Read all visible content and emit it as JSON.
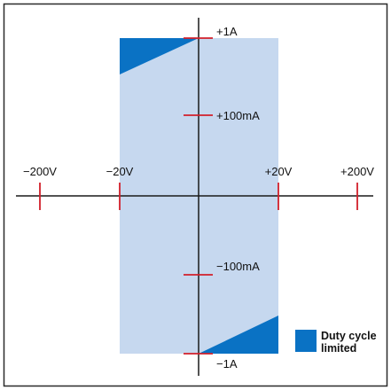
{
  "colors": {
    "operating_region": "#c6d8ef",
    "duty_cycle_region": "#0a72c4",
    "axis": "#1a1a1a",
    "tick": "#d21f2a",
    "frame": "#2a2a2a"
  },
  "axes": {
    "voltage_ticks": [
      {
        "id": "minus-200v",
        "label": "−200V"
      },
      {
        "id": "minus-20v",
        "label": "−20V"
      },
      {
        "id": "plus-20v",
        "label": "+20V"
      },
      {
        "id": "plus-200v",
        "label": "+200V"
      }
    ],
    "current_ticks": [
      {
        "id": "plus-1a",
        "label": "+1A"
      },
      {
        "id": "plus-100ma",
        "label": "+100mA"
      },
      {
        "id": "minus-100ma",
        "label": "−100mA"
      },
      {
        "id": "minus-1a",
        "label": "−1A"
      }
    ]
  },
  "legend": {
    "line1": "Duty cycle",
    "line2": "limited"
  }
}
